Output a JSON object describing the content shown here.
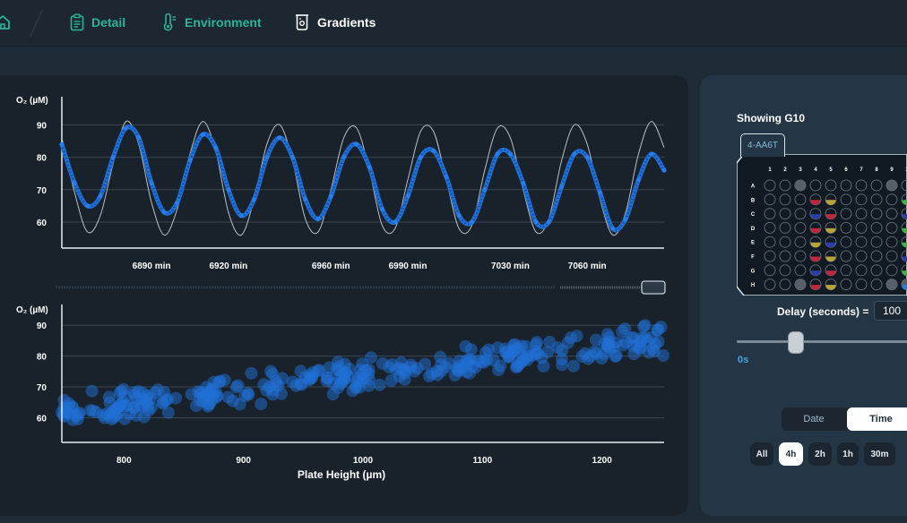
{
  "nav": {
    "home_icon": "home-icon",
    "detail": "Detail",
    "environment": "Environment",
    "gradients": "Gradients"
  },
  "colors": {
    "accent_teal": "#2bb39a",
    "series_blue": "#1f6fd6",
    "panel": "#19222b",
    "side_panel": "#243646"
  },
  "chart_data": [
    {
      "type": "line",
      "ylabel": "O₂ (µM)",
      "yticks": [
        60,
        70,
        80,
        90
      ],
      "ylim": [
        52,
        97
      ],
      "xticks": [
        "6890 min",
        "6920 min",
        "6960 min",
        "6990 min",
        "7030 min",
        "7060 min"
      ],
      "xtick_values": [
        6890,
        6920,
        6960,
        6990,
        7030,
        7060
      ],
      "xlim": [
        6855,
        7090
      ],
      "grid": true,
      "series": [
        {
          "kind": "reference sine",
          "color": "#b8c0c6",
          "x": [
            6855,
            6860,
            6865,
            6870,
            6875,
            6880,
            6885,
            6890,
            6895,
            6900,
            6905,
            6910,
            6915,
            6920,
            6925,
            6930,
            6935,
            6940,
            6945,
            6950,
            6955,
            6960,
            6965,
            6970,
            6975,
            6980,
            6985,
            6990,
            6995,
            7000,
            7005,
            7010,
            7015,
            7020,
            7025,
            7030,
            7035,
            7040,
            7045,
            7050,
            7055,
            7060,
            7065,
            7070,
            7075,
            7080,
            7085,
            7090
          ],
          "y": [
            86,
            69,
            57,
            62,
            78,
            91,
            84,
            66,
            56,
            64,
            81,
            91,
            82,
            63,
            56,
            67,
            84,
            90,
            79,
            61,
            57,
            70,
            86,
            89,
            76,
            59,
            58,
            73,
            88,
            88,
            73,
            58,
            59,
            76,
            89,
            86,
            70,
            57,
            61,
            79,
            90,
            84,
            67,
            56,
            63,
            81,
            91,
            83
          ]
        },
        {
          "kind": "measured",
          "color": "#1f6fd6",
          "x": [
            6855,
            6860,
            6865,
            6870,
            6875,
            6880,
            6885,
            6890,
            6895,
            6900,
            6905,
            6910,
            6915,
            6920,
            6925,
            6930,
            6935,
            6940,
            6945,
            6950,
            6955,
            6960,
            6965,
            6970,
            6975,
            6980,
            6985,
            6990,
            6995,
            7000,
            7005,
            7010,
            7015,
            7020,
            7025,
            7030,
            7035,
            7040,
            7045,
            7050,
            7055,
            7060,
            7065,
            7070,
            7075,
            7080,
            7085,
            7090
          ],
          "y": [
            84,
            72,
            65,
            68,
            80,
            89,
            86,
            72,
            63,
            66,
            79,
            87,
            83,
            70,
            62,
            67,
            80,
            86,
            80,
            67,
            61,
            68,
            80,
            84,
            77,
            64,
            60,
            68,
            80,
            82,
            74,
            62,
            60,
            70,
            81,
            81,
            72,
            60,
            60,
            71,
            81,
            80,
            69,
            58,
            61,
            73,
            81,
            76
          ]
        }
      ]
    },
    {
      "type": "scatter",
      "xlabel": "Plate Height (µm)",
      "ylabel": "O₂ (µM)",
      "xticks": [
        800,
        900,
        1000,
        1100,
        1200
      ],
      "xlim": [
        748,
        1252
      ],
      "yticks": [
        60,
        70,
        80,
        90
      ],
      "ylim": [
        52,
        95
      ],
      "grid": true,
      "series": [
        {
          "kind": "measured",
          "color": "#1f6fd6",
          "trend": {
            "x": [
              748,
              1252
            ],
            "y": [
              62,
              86
            ]
          },
          "spread": 6,
          "points": 320
        }
      ]
    }
  ],
  "side": {
    "showing": "Showing G10",
    "plate_tab": "4-AA6T",
    "plate_cols": [
      "1",
      "2",
      "3",
      "4",
      "5",
      "6",
      "7",
      "8",
      "9",
      "1"
    ],
    "plate_rows": [
      "A",
      "B",
      "C",
      "D",
      "E",
      "F",
      "G",
      "H"
    ],
    "delay_label": "Delay (seconds) =",
    "delay_value": "100",
    "slider_min": "0s",
    "slider_value_fraction": 0.33,
    "seg_date": "Date",
    "seg_time": "Time",
    "ranges": [
      "All",
      "4h",
      "2h",
      "1h",
      "30m"
    ],
    "active_range": "4h"
  }
}
